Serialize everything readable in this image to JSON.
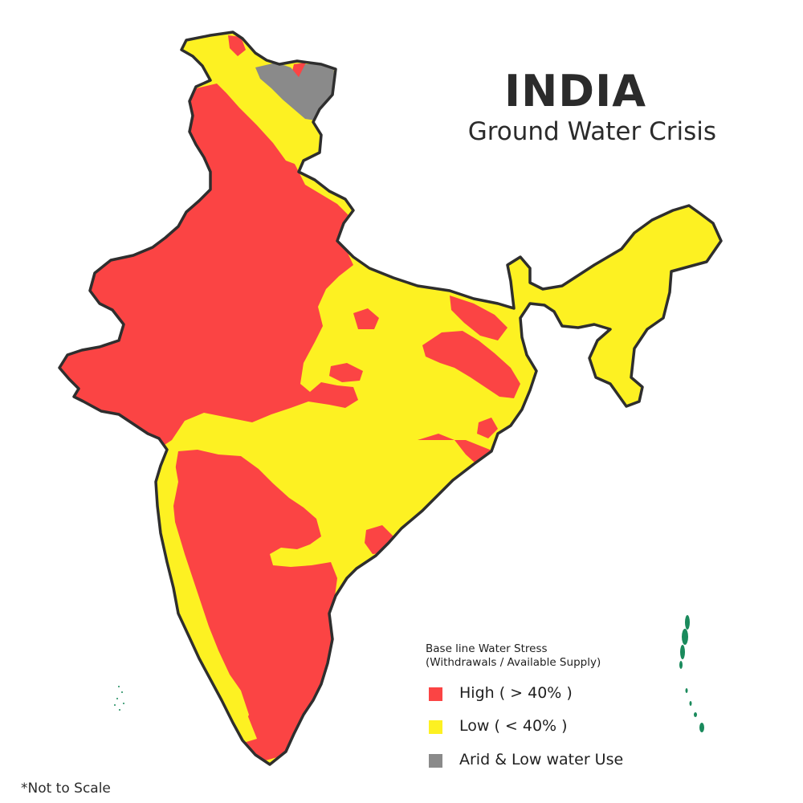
{
  "title": "INDIA",
  "subtitle": "Ground Water Crisis",
  "legend": {
    "heading_line1": "Base line Water Stress",
    "heading_line2": "(Withdrawals / Available Supply)",
    "items": [
      {
        "label": "High ( > 40% )",
        "color": "#fb4444"
      },
      {
        "label": "Low ( < 40% )",
        "color": "#fdf122"
      },
      {
        "label": "Arid & Low water Use",
        "color": "#8a8a8a"
      }
    ]
  },
  "colors": {
    "high": "#fb4444",
    "low": "#fdf122",
    "arid": "#8a8a8a",
    "outline": "#2e2e2e",
    "islands": "#1a8a5c"
  },
  "note": "*Not to Scale"
}
